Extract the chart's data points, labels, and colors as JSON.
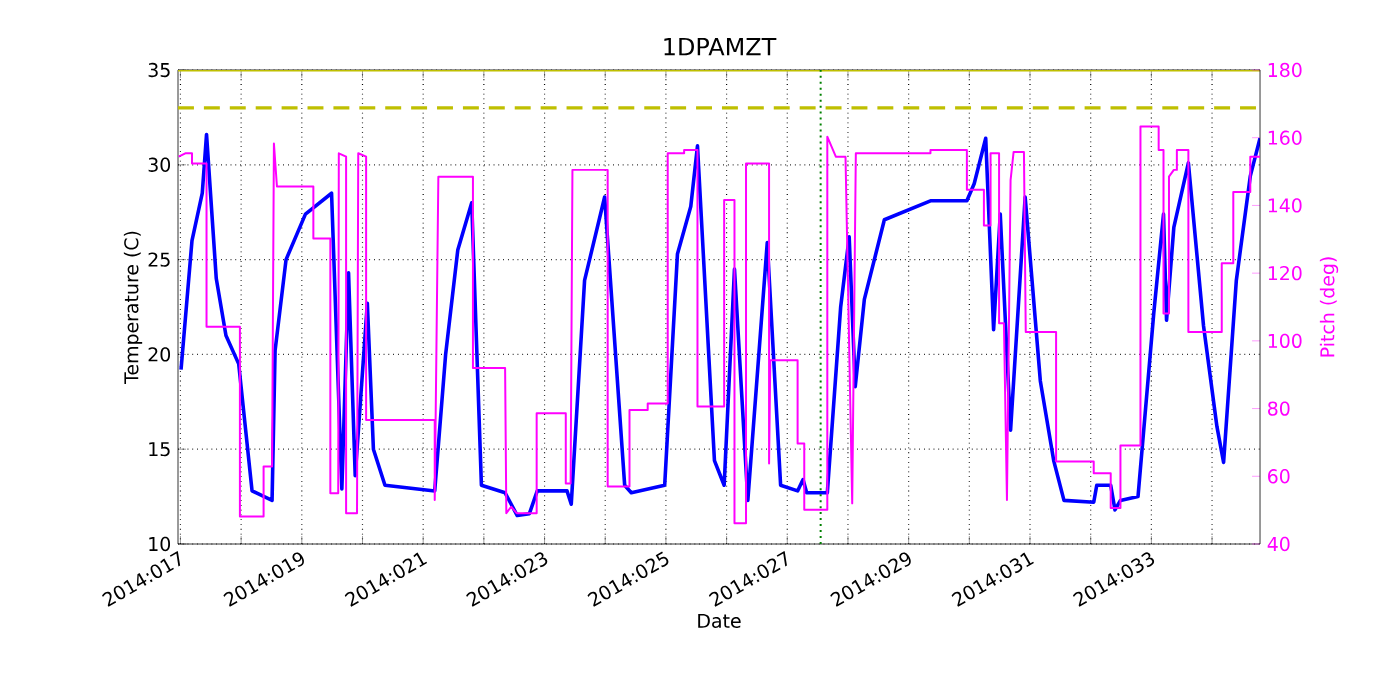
{
  "chart_data": {
    "type": "line",
    "title": "1DPAMZT",
    "xlabel": "Date",
    "ylabel": "Temperature (C)",
    "y2label": "Pitch (deg)",
    "xlim": [
      "2014-01-16T23:02",
      "2014-02-03T18:58"
    ],
    "xticks": [
      {
        "value": "2014-01-17",
        "label": "2014:017"
      },
      {
        "value": "2014-01-18",
        "label": null
      },
      {
        "value": "2014-01-19",
        "label": "2014:019"
      },
      {
        "value": "2014-01-20",
        "label": null
      },
      {
        "value": "2014-01-21",
        "label": "2014:021"
      },
      {
        "value": "2014-01-22",
        "label": null
      },
      {
        "value": "2014-01-23",
        "label": "2014:023"
      },
      {
        "value": "2014-01-24",
        "label": null
      },
      {
        "value": "2014-01-25",
        "label": "2014:025"
      },
      {
        "value": "2014-01-26",
        "label": null
      },
      {
        "value": "2014-01-27",
        "label": "2014:027"
      },
      {
        "value": "2014-01-28",
        "label": null
      },
      {
        "value": "2014-01-29",
        "label": "2014:029"
      },
      {
        "value": "2014-01-30",
        "label": null
      },
      {
        "value": "2014-01-31",
        "label": "2014:031"
      },
      {
        "value": "2014-02-01",
        "label": null
      },
      {
        "value": "2014-02-02",
        "label": "2014:033"
      },
      {
        "value": "2014-02-03",
        "label": null
      }
    ],
    "ylim": [
      10,
      35
    ],
    "yticks": [
      10,
      15,
      20,
      25,
      30,
      35
    ],
    "y2lim": [
      40,
      180
    ],
    "y2ticks": [
      40,
      60,
      80,
      100,
      120,
      140,
      160,
      180
    ],
    "grid": true,
    "series": [
      {
        "color": "#0000ff",
        "x": [
          "2014-01-17T00:14",
          "2014-01-17T04:34",
          "2014-01-17T08:38",
          "2014-01-17T10:19",
          "2014-01-17T14:10",
          "2014-01-17T18:00",
          "2014-01-17T23:02",
          "2014-01-18T04:19",
          "2014-01-18T12:14",
          "2014-01-18T13:26",
          "2014-01-18T17:46",
          "2014-01-19T01:26",
          "2014-01-19T11:46",
          "2014-01-19T15:50",
          "2014-01-19T18:29",
          "2014-01-19T21:07",
          "2014-01-20T01:55",
          "2014-01-20T04:19",
          "2014-01-20T08:53",
          "2014-01-21T04:34",
          "2014-01-21T08:53",
          "2014-01-21T13:41",
          "2014-01-21T19:12",
          "2014-01-21T23:02",
          "2014-01-22T08:24",
          "2014-01-22T13:12",
          "2014-01-22T18:00",
          "2014-01-22T21:07",
          "2014-01-23T08:53",
          "2014-01-23T10:34",
          "2014-01-23T15:50",
          "2014-01-23T23:46",
          "2014-01-24T07:41",
          "2014-01-24T10:19",
          "2014-01-24T23:31",
          "2014-01-25T04:34",
          "2014-01-25T09:50",
          "2014-01-25T12:29",
          "2014-01-25T19:12",
          "2014-01-25T23:02",
          "2014-01-26T03:07",
          "2014-01-26T08:24",
          "2014-01-26T16:05",
          "2014-01-26T21:22",
          "2014-01-27T04:05",
          "2014-01-27T06:14",
          "2014-01-27T07:41",
          "2014-01-27T15:50",
          "2014-01-27T21:07",
          "2014-01-28T00:29",
          "2014-01-28T02:53",
          "2014-01-28T06:29",
          "2014-01-28T14:24",
          "2014-01-29T08:38",
          "2014-01-29T23:02",
          "2014-01-30T01:55",
          "2014-01-30T06:29",
          "2014-01-30T09:36",
          "2014-01-30T12:14",
          "2014-01-30T16:19",
          "2014-01-30T22:05",
          "2014-01-31T04:05",
          "2014-01-31T09:22",
          "2014-01-31T13:26",
          "2014-02-01T01:12",
          "2014-02-01T02:24",
          "2014-02-01T07:55",
          "2014-02-01T09:36",
          "2014-02-01T11:46",
          "2014-02-01T18:43",
          "2014-02-02T00:58",
          "2014-02-02T04:48",
          "2014-02-02T06:00",
          "2014-02-02T08:53",
          "2014-02-02T14:38",
          "2014-02-02T20:38",
          "2014-02-03T01:55",
          "2014-02-03T04:34",
          "2014-02-03T09:36",
          "2014-02-03T15:07",
          "2014-02-03T18:58"
        ],
        "values": [
          19.2,
          26,
          28.5,
          31.6,
          24,
          21,
          19.5,
          12.8,
          12.3,
          20.2,
          25,
          27.4,
          28.5,
          12.9,
          24.3,
          13.6,
          22.7,
          15,
          13.1,
          12.8,
          20,
          25.5,
          28.0,
          13.1,
          12.7,
          11.5,
          11.6,
          12.8,
          12.8,
          12.1,
          23.9,
          28.3,
          13.1,
          12.7,
          13.1,
          25.3,
          27.8,
          31.0,
          14.4,
          13.1,
          24.5,
          12.3,
          25.9,
          13.1,
          12.8,
          13.4,
          12.7,
          12.7,
          22.5,
          26.2,
          18.3,
          22.9,
          27.1,
          28.1,
          28.1,
          29.0,
          31.4,
          21.3,
          27.4,
          16.0,
          28.3,
          18.6,
          14.4,
          12.3,
          12.2,
          13.1,
          13.1,
          11.8,
          12.3,
          12.5,
          22.2,
          27.4,
          21.8,
          26.7,
          30.1,
          21.5,
          16.2,
          14.3,
          23.9,
          29.4,
          31.4
        ]
      },
      {
        "color": "#ff00ff",
        "axis": "y2",
        "x": [
          "2014-01-16T23:17",
          "2014-01-17T01:55",
          "2014-01-17T04:34",
          "2014-01-17T04:34",
          "2014-01-17T10:19",
          "2014-01-17T10:19",
          "2014-01-17T23:31",
          "2014-01-17T23:31",
          "2014-01-18T08:53",
          "2014-01-18T08:53",
          "2014-01-18T12:14",
          "2014-01-18T12:58",
          "2014-01-18T14:10",
          "2014-01-19T04:34",
          "2014-01-19T04:34",
          "2014-01-19T11:17",
          "2014-01-19T11:17",
          "2014-01-19T14:24",
          "2014-01-19T14:38",
          "2014-01-19T17:31",
          "2014-01-19T17:31",
          "2014-01-19T21:50",
          "2014-01-19T22:19",
          "2014-01-20T01:26",
          "2014-01-20T01:26",
          "2014-01-21T04:34",
          "2014-01-21T04:34",
          "2014-01-21T06:00",
          "2014-01-21T19:41",
          "2014-01-21T19:41",
          "2014-01-22T08:24",
          "2014-01-22T08:53",
          "2014-01-22T10:48",
          "2014-01-22T12:58",
          "2014-01-22T20:53",
          "2014-01-22T20:53",
          "2014-01-23T08:24",
          "2014-01-23T08:24",
          "2014-01-23T10:19",
          "2014-01-23T11:02",
          "2014-01-24T00:58",
          "2014-01-24T00:58",
          "2014-01-24T09:36",
          "2014-01-24T09:36",
          "2014-01-24T16:48",
          "2014-01-24T16:48",
          "2014-01-25T00:43",
          "2014-01-25T00:43",
          "2014-01-25T07:12",
          "2014-01-25T07:12",
          "2014-01-25T12:29",
          "2014-01-25T12:29",
          "2014-01-25T23:02",
          "2014-01-25T23:02",
          "2014-01-26T03:07",
          "2014-01-26T03:07",
          "2014-01-26T07:41",
          "2014-01-26T07:41",
          "2014-01-26T16:48",
          "2014-01-26T16:48",
          "2014-01-26T17:17",
          "2014-01-27T04:05",
          "2014-01-27T04:05",
          "2014-01-27T06:43",
          "2014-01-27T06:43",
          "2014-01-27T15:50",
          "2014-01-27T15:50",
          "2014-01-27T19:12",
          "2014-01-27T23:02",
          "2014-01-28T01:41",
          "2014-01-28T03:07",
          "2014-01-29T08:38",
          "2014-01-29T08:38",
          "2014-01-29T23:02",
          "2014-01-29T23:02",
          "2014-01-30T05:46",
          "2014-01-30T05:46",
          "2014-01-30T08:24",
          "2014-01-30T08:24",
          "2014-01-30T11:46",
          "2014-01-30T11:46",
          "2014-01-30T13:41",
          "2014-01-30T14:53",
          "2014-01-30T16:19",
          "2014-01-30T17:31",
          "2014-01-30T21:36",
          "2014-01-30T22:19",
          "2014-01-31T10:19",
          "2014-01-31T10:19",
          "2014-02-01T01:12",
          "2014-02-01T01:12",
          "2014-02-01T07:55",
          "2014-02-01T07:55",
          "2014-02-01T11:46",
          "2014-02-01T11:46",
          "2014-02-01T19:41",
          "2014-02-01T19:41",
          "2014-02-02T02:53",
          "2014-02-02T02:53",
          "2014-02-02T04:48",
          "2014-02-02T04:48",
          "2014-02-02T06:58",
          "2014-02-02T06:58",
          "2014-02-02T08:53",
          "2014-02-02T10:05",
          "2014-02-02T10:05",
          "2014-02-02T14:38",
          "2014-02-02T14:38",
          "2014-02-03T03:50",
          "2014-02-03T03:50",
          "2014-02-03T08:24",
          "2014-02-03T08:24",
          "2014-02-03T15:07",
          "2014-02-03T15:07",
          "2014-02-03T18:58"
        ],
        "values": [
          154.4,
          155.4,
          155.4,
          152.4,
          152.4,
          104.2,
          104.2,
          48.1,
          48.1,
          62.9,
          62.9,
          158.3,
          145.6,
          145.6,
          130.2,
          130.2,
          55.0,
          55.0,
          155.4,
          154.4,
          49.1,
          49.1,
          155.4,
          154.4,
          76.6,
          76.6,
          53.0,
          148.5,
          148.5,
          92.0,
          92.0,
          49.1,
          51.0,
          49.1,
          49.1,
          78.6,
          78.6,
          57.9,
          57.9,
          150.5,
          150.5,
          57.0,
          57.0,
          79.6,
          79.6,
          81.5,
          81.5,
          155.4,
          155.4,
          156.4,
          156.4,
          80.6,
          80.6,
          141.6,
          141.6,
          46.1,
          46.1,
          152.4,
          152.4,
          63.8,
          94.3,
          94.3,
          69.7,
          69.7,
          50.1,
          50.1,
          160.3,
          154.4,
          154.4,
          52.0,
          155.4,
          155.4,
          156.4,
          156.4,
          144.6,
          144.6,
          134.1,
          134.1,
          155.4,
          155.4,
          105.2,
          105.2,
          53.0,
          147.5,
          155.8,
          155.8,
          102.6,
          102.6,
          64.4,
          64.4,
          60.9,
          60.9,
          50.6,
          50.6,
          69.1,
          69.1,
          163.3,
          163.3,
          156.4,
          156.4,
          108.1,
          108.1,
          148.5,
          150.5,
          150.5,
          156.4,
          156.4,
          102.6,
          102.6,
          122.9,
          122.9,
          144.0,
          144.0,
          154.4,
          154.4
        ]
      }
    ],
    "ref_lines": [
      {
        "axis": "y",
        "value": 33,
        "color": "#bfbf00",
        "line_style": "dashed"
      },
      {
        "axis": "y",
        "value": 35,
        "color": "#bfbf00",
        "line_style": "solid"
      },
      {
        "axis": "x",
        "value": "2014-01-27T13:12",
        "color": "#008000",
        "line_style": "dotted"
      }
    ]
  }
}
